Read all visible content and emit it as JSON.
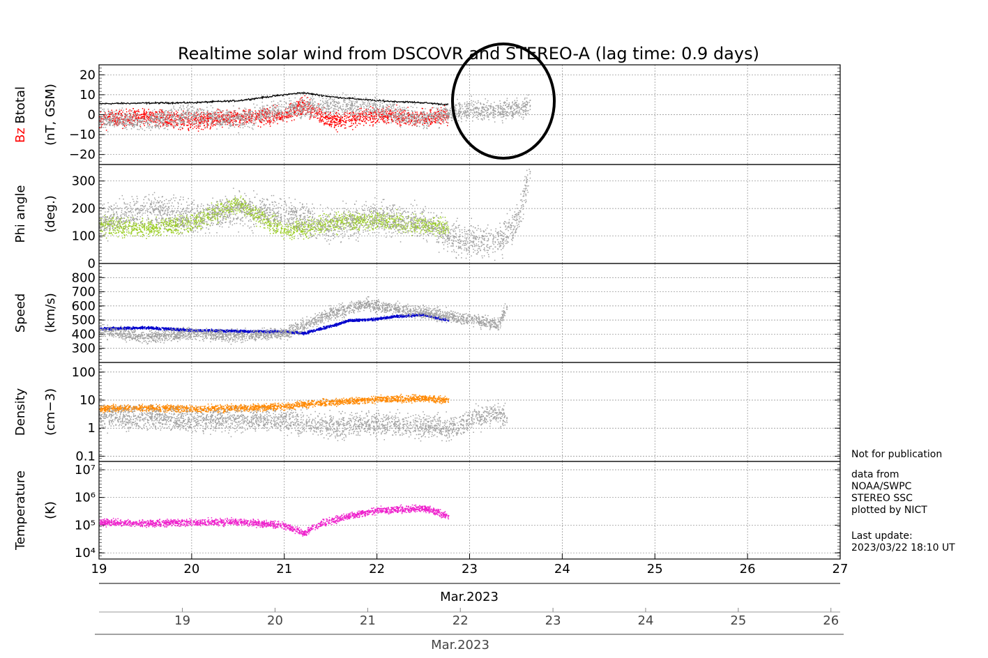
{
  "title": "Realtime solar wind from DSCOVR and STEREO-A (lag time: 0.9 days)",
  "notes": {
    "not_for_publication": "Not for publication",
    "credit_lines": [
      "data from",
      "NOAA/SWPC",
      "STEREO SSC",
      "plotted by NICT"
    ],
    "last_update_label": "Last update:",
    "last_update_value": "2023/03/22 18:10 UT"
  },
  "colors": {
    "stereo_gray": "#a0a0a0",
    "btotal": "#000000",
    "bz": "#ff0000",
    "phi": "#99cc22",
    "speed": "#0000cc",
    "density": "#ff8800",
    "temperature": "#ee22cc",
    "grid": "#888888",
    "annotation_circle": "#000000"
  },
  "axes": {
    "primary_x": {
      "ticks": [
        "19",
        "20",
        "21",
        "22",
        "23",
        "24",
        "25",
        "26",
        "27"
      ],
      "label": "Mar.2023",
      "range": [
        19,
        27
      ]
    },
    "secondary_x": {
      "ticks": [
        "19",
        "20",
        "21",
        "22",
        "23",
        "24",
        "25",
        "26"
      ],
      "label": "Mar.2023",
      "range": [
        18.1,
        26.1
      ]
    }
  },
  "chart_data": [
    {
      "type": "line",
      "panel": "btotal_bz",
      "ylabel_parts": [
        "Bz",
        "Btotal"
      ],
      "ylabel_unit": "(nT, GSM)",
      "ylim": [
        -25,
        25
      ],
      "ticks": [
        {
          "v": 20,
          "label": "20"
        },
        {
          "v": 10,
          "label": "10"
        },
        {
          "v": 0,
          "label": "0"
        },
        {
          "v": -10,
          "label": "−10"
        },
        {
          "v": -20,
          "label": "−20"
        }
      ],
      "log": false,
      "series": [
        {
          "name": "Btotal",
          "color": "#000000",
          "style": "line",
          "x": [
            19.0,
            19.5,
            20.0,
            20.5,
            21.0,
            21.2,
            21.5,
            22.0,
            22.5,
            22.77
          ],
          "y": [
            5.5,
            5.8,
            6,
            7,
            10,
            11,
            9,
            7,
            6,
            5
          ]
        },
        {
          "name": "Bz",
          "color": "#ff0000",
          "style": "scatter",
          "x": [
            19.0,
            19.5,
            20.0,
            20.5,
            21.0,
            21.2,
            21.5,
            22.0,
            22.5,
            22.77
          ],
          "y": [
            -2,
            -1,
            -3,
            -1,
            0,
            5,
            -3,
            0,
            -2,
            0
          ]
        },
        {
          "name": "STEREO-A",
          "color": "#a0a0a0",
          "style": "scatter",
          "x": [
            19.0,
            19.5,
            20.0,
            20.5,
            21.0,
            21.5,
            22.0,
            22.5,
            23.0,
            23.3,
            23.65
          ],
          "y": [
            -2,
            -3,
            0,
            -2,
            3,
            5,
            3,
            -2,
            3,
            2,
            5
          ]
        }
      ]
    },
    {
      "type": "scatter",
      "panel": "phi",
      "ylabel_parts": [
        "Phi angle"
      ],
      "ylabel_unit": "(deg.)",
      "ylim": [
        0,
        360
      ],
      "ticks": [
        {
          "v": 0,
          "label": "0"
        },
        {
          "v": 100,
          "label": "100"
        },
        {
          "v": 200,
          "label": "200"
        },
        {
          "v": 300,
          "label": "300"
        }
      ],
      "log": false,
      "series": [
        {
          "name": "Phi",
          "color": "#99cc22",
          "style": "scatter",
          "x": [
            19.0,
            19.5,
            20.0,
            20.5,
            21.0,
            21.5,
            22.0,
            22.5,
            22.77
          ],
          "y": [
            140,
            130,
            150,
            220,
            120,
            150,
            160,
            140,
            130
          ]
        },
        {
          "name": "STEREO-A",
          "color": "#a0a0a0",
          "style": "scatter",
          "x": [
            19.0,
            19.5,
            20.0,
            20.5,
            21.0,
            21.5,
            22.0,
            22.5,
            22.8,
            23.3,
            23.5,
            23.65
          ],
          "y": [
            150,
            200,
            170,
            200,
            180,
            140,
            170,
            150,
            90,
            80,
            150,
            340
          ]
        }
      ]
    },
    {
      "type": "scatter",
      "panel": "speed",
      "ylabel_parts": [
        "Speed"
      ],
      "ylabel_unit": "(km/s)",
      "ylim": [
        200,
        900
      ],
      "ticks": [
        {
          "v": 300,
          "label": "300"
        },
        {
          "v": 400,
          "label": "400"
        },
        {
          "v": 500,
          "label": "500"
        },
        {
          "v": 600,
          "label": "600"
        },
        {
          "v": 700,
          "label": "700"
        },
        {
          "v": 800,
          "label": "800"
        }
      ],
      "log": false,
      "series": [
        {
          "name": "Speed",
          "color": "#0000cc",
          "style": "scatter",
          "x": [
            19.0,
            19.5,
            20.0,
            20.5,
            21.0,
            21.2,
            21.5,
            21.7,
            22.0,
            22.2,
            22.5,
            22.77
          ],
          "y": [
            440,
            450,
            430,
            425,
            420,
            410,
            460,
            500,
            510,
            530,
            540,
            500
          ]
        },
        {
          "name": "STEREO-A",
          "color": "#a0a0a0",
          "style": "scatter",
          "x": [
            19.0,
            19.5,
            20.0,
            20.5,
            21.0,
            21.5,
            21.9,
            22.0,
            23.0,
            23.3,
            23.4
          ],
          "y": [
            430,
            380,
            410,
            390,
            410,
            550,
            620,
            600,
            510,
            470,
            600
          ]
        }
      ]
    },
    {
      "type": "scatter",
      "panel": "density",
      "ylabel_parts": [
        "Density"
      ],
      "ylabel_unit": "(cm−3)",
      "ylim": [
        0.065,
        220
      ],
      "ticks": [
        {
          "v": 0.1,
          "label": "0.1"
        },
        {
          "v": 1,
          "label": "1"
        },
        {
          "v": 10,
          "label": "10"
        },
        {
          "v": 100,
          "label": "100"
        }
      ],
      "log": true,
      "series": [
        {
          "name": "Density",
          "color": "#ff8800",
          "style": "scatter",
          "x": [
            19.0,
            19.5,
            20.0,
            20.5,
            21.0,
            21.3,
            21.6,
            22.0,
            22.5,
            22.77
          ],
          "y": [
            5,
            5.5,
            5,
            5.5,
            6,
            8,
            9,
            11,
            12,
            10
          ]
        },
        {
          "name": "STEREO-A",
          "color": "#a0a0a0",
          "style": "scatter",
          "x": [
            19.0,
            19.5,
            20.0,
            20.5,
            21.0,
            21.5,
            22.0,
            22.8,
            23.1,
            23.3,
            23.4
          ],
          "y": [
            2.5,
            2.5,
            2,
            2,
            2,
            1.2,
            1.5,
            1,
            2.5,
            4,
            2.5
          ]
        }
      ]
    },
    {
      "type": "scatter",
      "panel": "temperature",
      "ylabel_parts": [
        "Temperature"
      ],
      "ylabel_unit": "(K)",
      "ylim": [
        6000,
        20000000
      ],
      "ticks": [
        {
          "v": 10000,
          "label": "10⁴"
        },
        {
          "v": 100000,
          "label": "10⁵"
        },
        {
          "v": 1000000,
          "label": "10⁶"
        },
        {
          "v": 10000000,
          "label": "10⁷"
        }
      ],
      "log": true,
      "series": [
        {
          "name": "Temperature",
          "color": "#ee22cc",
          "style": "scatter",
          "x": [
            19.0,
            19.5,
            20.0,
            20.5,
            21.0,
            21.2,
            21.5,
            21.7,
            22.0,
            22.5,
            22.77
          ],
          "y": [
            130000,
            120000,
            130000,
            140000,
            100000,
            50000,
            150000,
            220000,
            350000,
            420000,
            200000
          ]
        }
      ]
    }
  ]
}
